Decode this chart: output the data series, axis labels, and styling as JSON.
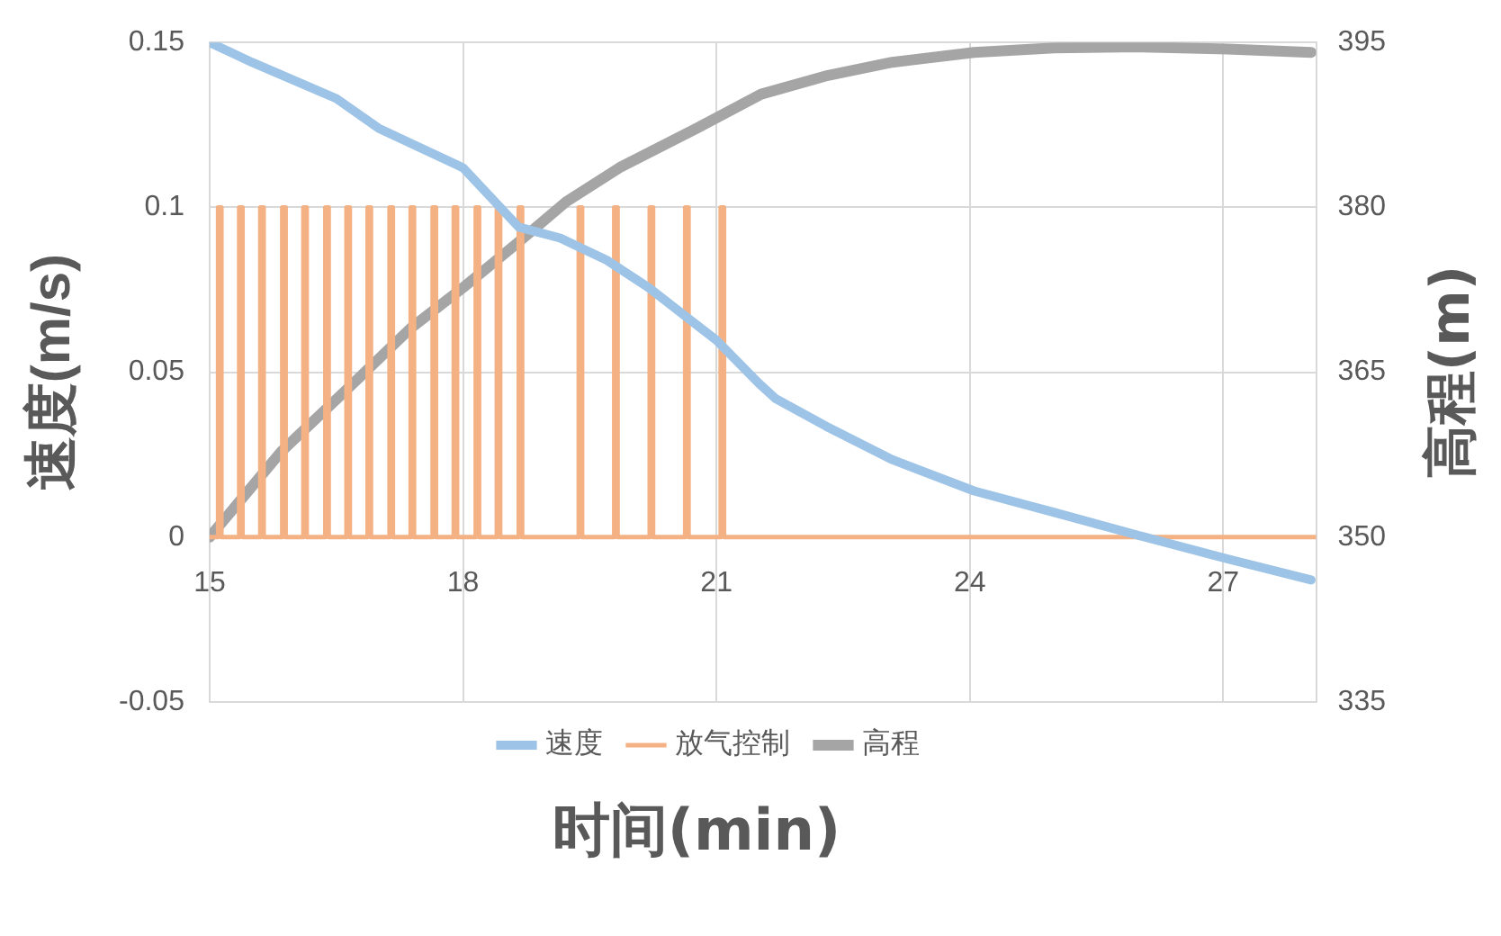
{
  "chart_data": {
    "type": "line",
    "xlabel": "时间(min)",
    "ylabel": "速度(m/s)",
    "y2label": "高程(m)",
    "xlim": [
      15,
      28.1
    ],
    "xticks": [
      15,
      18,
      21,
      24,
      27
    ],
    "ylim": [
      -0.05,
      0.15
    ],
    "yticks": [
      -0.05,
      0,
      0.05,
      0.1,
      0.15
    ],
    "y2lim": [
      335,
      395
    ],
    "y2ticks": [
      335,
      350,
      365,
      380,
      395
    ],
    "grid": true,
    "legend": "bottom",
    "marker": "none",
    "series": [
      {
        "name": "速度",
        "color": "#9dc3e6",
        "x": [
          15,
          15.5,
          16.5,
          17,
          18,
          18.66,
          19.15,
          19.7,
          20.2,
          21,
          21.5,
          21.7,
          22.3,
          23.08,
          24.05,
          25,
          26,
          27.05,
          28.04
        ],
        "values": [
          0.15,
          0.144,
          0.133,
          0.124,
          0.112,
          0.094,
          0.0907,
          0.084,
          0.0756,
          0.0597,
          0.0467,
          0.042,
          0.0336,
          0.0235,
          0.014,
          0.0075,
          0.0005,
          -0.0066,
          -0.013
        ]
      },
      {
        "name": "放气控制",
        "color": "#f4b183",
        "x": [
          15,
          15.1,
          15.1,
          15.14,
          15.14,
          15.35,
          15.35,
          15.39,
          15.39,
          15.6,
          15.6,
          15.64,
          15.64,
          15.86,
          15.86,
          15.9,
          15.9,
          16.11,
          16.11,
          16.15,
          16.15,
          16.37,
          16.37,
          16.41,
          16.41,
          16.62,
          16.62,
          16.66,
          16.66,
          16.87,
          16.87,
          16.91,
          16.91,
          17.13,
          17.13,
          17.17,
          17.17,
          17.38,
          17.38,
          17.42,
          17.42,
          17.64,
          17.64,
          17.68,
          17.68,
          17.89,
          17.89,
          17.93,
          17.93,
          18.15,
          18.15,
          18.19,
          18.19,
          18.4,
          18.4,
          18.44,
          18.44,
          18.66,
          18.66,
          18.7,
          18.7,
          19.37,
          19.37,
          19.41,
          19.41,
          19.79,
          19.79,
          19.83,
          19.83,
          20.21,
          20.21,
          20.25,
          20.25,
          20.63,
          20.63,
          20.67,
          20.67,
          21.05,
          21.05,
          21.09,
          21.09,
          28.1
        ],
        "values": [
          0,
          0,
          0.1,
          0.1,
          0,
          0,
          0.1,
          0.1,
          0,
          0,
          0.1,
          0.1,
          0,
          0,
          0.1,
          0.1,
          0,
          0,
          0.1,
          0.1,
          0,
          0,
          0.1,
          0.1,
          0,
          0,
          0.1,
          0.1,
          0,
          0,
          0.1,
          0.1,
          0,
          0,
          0.1,
          0.1,
          0,
          0,
          0.1,
          0.1,
          0,
          0,
          0.1,
          0.1,
          0,
          0,
          0.1,
          0.1,
          0,
          0,
          0.1,
          0.1,
          0,
          0,
          0.1,
          0.1,
          0,
          0,
          0.1,
          0.1,
          0,
          0,
          0.1,
          0.1,
          0,
          0,
          0.1,
          0.1,
          0,
          0,
          0.1,
          0.1,
          0,
          0,
          0.1,
          0.1,
          0,
          0,
          0.1,
          0.1,
          0,
          0
        ]
      },
      {
        "name": "高程",
        "color": "#a5a5a5",
        "axis": "y2",
        "x": [
          15,
          15.85,
          16.62,
          17.38,
          18,
          18.62,
          19.22,
          19.85,
          20.77,
          21.53,
          22.32,
          23.08,
          24.05,
          25,
          26,
          27.05,
          28.04
        ],
        "values": [
          350,
          357.8,
          363.4,
          369,
          372.7,
          376.6,
          380.5,
          383.6,
          387.2,
          390.3,
          392,
          393.2,
          394.1,
          394.5,
          394.6,
          394.4,
          394.1
        ]
      }
    ]
  }
}
